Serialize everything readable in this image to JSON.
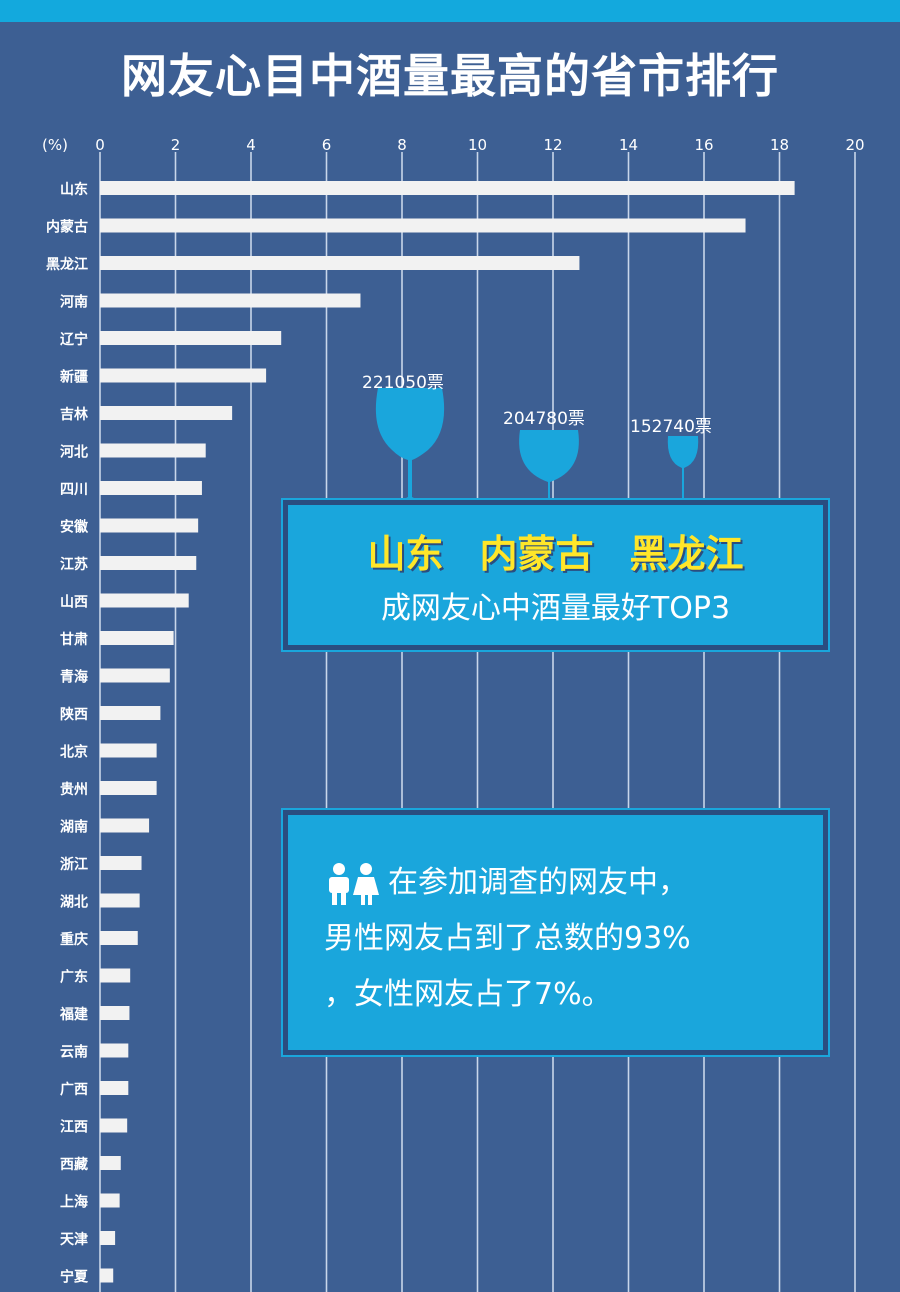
{
  "title": "网友心目中酒量最高的省市排行",
  "chart_data": {
    "type": "bar",
    "orientation": "horizontal",
    "xlabel": "(%)",
    "xlim": [
      0,
      20
    ],
    "xticks": [
      0,
      2,
      4,
      6,
      8,
      10,
      12,
      14,
      16,
      18,
      20
    ],
    "grid": true,
    "categories": [
      "山东",
      "内蒙古",
      "黑龙江",
      "河南",
      "辽宁",
      "新疆",
      "吉林",
      "河北",
      "四川",
      "安徽",
      "江苏",
      "山西",
      "甘肃",
      "青海",
      "陕西",
      "北京",
      "贵州",
      "湖南",
      "浙江",
      "湖北",
      "重庆",
      "广东",
      "福建",
      "云南",
      "广西",
      "江西",
      "西藏",
      "上海",
      "天津",
      "宁夏"
    ],
    "values": [
      18.4,
      17.1,
      12.7,
      6.9,
      4.8,
      4.4,
      3.5,
      2.8,
      2.7,
      2.6,
      2.55,
      2.35,
      1.95,
      1.85,
      1.6,
      1.5,
      1.5,
      1.3,
      1.1,
      1.05,
      1.0,
      0.8,
      0.78,
      0.75,
      0.75,
      0.72,
      0.55,
      0.52,
      0.4,
      0.35
    ],
    "bar_color": "#f2f2f2"
  },
  "top3": {
    "votes": [
      {
        "label": "221050票",
        "value": 221050
      },
      {
        "label": "204780票",
        "value": 204780
      },
      {
        "label": "152740票",
        "value": 152740
      }
    ],
    "names": [
      "山东",
      "内蒙古",
      "黑龙江"
    ],
    "subtitle": "成网友心中酒量最好TOP3"
  },
  "gender": {
    "lines": [
      "在参加调查的网友中，",
      "男性网友占到了总数的93%",
      "，女性网友占了7%。"
    ],
    "male_percent": 93,
    "female_percent": 7
  },
  "colors": {
    "background": "#3d5f93",
    "accent": "#1aa6dc",
    "highlight": "#ffe629",
    "bar": "#f2f2f2"
  }
}
